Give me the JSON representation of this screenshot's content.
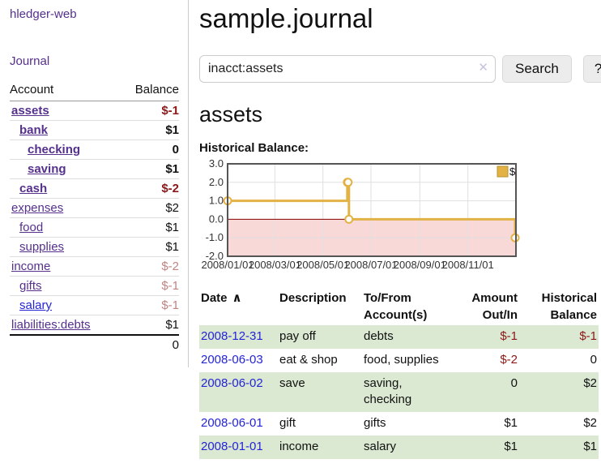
{
  "app": {
    "brand": "hledger-web",
    "nav_journal": "Journal"
  },
  "colors": {
    "link_purple": "#55308d",
    "link_blue": "#2424d6",
    "negative_strong": "#8c1818",
    "negative_soft": "#c08483",
    "row_stripe_green": "#dbe9d3"
  },
  "sidebar": {
    "header": {
      "account": "Account",
      "balance": "Balance"
    },
    "accounts": [
      {
        "name": "assets",
        "indent": 0,
        "bold": true,
        "link_color": "purple",
        "balance": "$-1",
        "balance_style": "neg-strong"
      },
      {
        "name": "bank",
        "indent": 1,
        "bold": true,
        "link_color": "purple",
        "balance": "$1",
        "balance_style": "normal"
      },
      {
        "name": "checking",
        "indent": 2,
        "bold": true,
        "link_color": "purple",
        "balance": "0",
        "balance_style": "normal"
      },
      {
        "name": "saving",
        "indent": 2,
        "bold": true,
        "link_color": "purple",
        "balance": "$1",
        "balance_style": "normal"
      },
      {
        "name": "cash",
        "indent": 1,
        "bold": true,
        "link_color": "purple",
        "balance": "$-2",
        "balance_style": "neg-strong"
      },
      {
        "name": "expenses",
        "indent": 0,
        "bold": false,
        "link_color": "purple",
        "balance": "$2",
        "balance_style": "normal"
      },
      {
        "name": "food",
        "indent": 1,
        "bold": false,
        "link_color": "purple",
        "balance": "$1",
        "balance_style": "normal"
      },
      {
        "name": "supplies",
        "indent": 1,
        "bold": false,
        "link_color": "purple",
        "balance": "$1",
        "balance_style": "normal"
      },
      {
        "name": "income",
        "indent": 0,
        "bold": false,
        "link_color": "purple",
        "balance": "$-2",
        "balance_style": "neg-soft"
      },
      {
        "name": "gifts",
        "indent": 1,
        "bold": false,
        "link_color": "purple",
        "balance": "$-1",
        "balance_style": "neg-soft"
      },
      {
        "name": "salary",
        "indent": 1,
        "bold": false,
        "link_color": "blue",
        "balance": "$-1",
        "balance_style": "neg-soft"
      },
      {
        "name": "liabilities:debts",
        "indent": 0,
        "bold": false,
        "link_color": "purple",
        "balance": "$1",
        "balance_style": "normal"
      }
    ],
    "total": "0"
  },
  "main": {
    "title": "sample.journal",
    "search": {
      "value": "inacct:assets",
      "clear_icon": "✕",
      "button_label": "Search",
      "help_label": "?"
    },
    "account_heading": "assets",
    "chart_label": "Historical Balance:"
  },
  "chart_data": {
    "type": "line",
    "title": "Historical Balance:",
    "step": true,
    "series": [
      {
        "name": "$",
        "points": [
          {
            "x": "2008-01-01",
            "y": 1
          },
          {
            "x": "2008-06-01",
            "y": 2
          },
          {
            "x": "2008-06-02",
            "y": 2
          },
          {
            "x": "2008-06-03",
            "y": 0
          },
          {
            "x": "2008-12-31",
            "y": -1
          }
        ]
      }
    ],
    "ylim": [
      -2,
      3
    ],
    "yticks": [
      3,
      2,
      1,
      0,
      -1,
      -2
    ],
    "ytick_labels": [
      "3.0",
      "2.0",
      "1.0",
      "0.0",
      "-1.0",
      "-2.0"
    ],
    "xlim": [
      "2008-01-01",
      "2009-01-01"
    ],
    "xticks": [
      "2008-01-01",
      "2008-03-01",
      "2008-05-01",
      "2008-07-01",
      "2008-09-01",
      "2008-11-01"
    ],
    "xtick_labels": [
      "2008/01/01",
      "2008/03/01",
      "2008/05/01",
      "2008/07/01",
      "2008/09/01",
      "2008/11/01"
    ],
    "legend": {
      "position": "top-right",
      "entries": [
        "$"
      ]
    },
    "grid": true,
    "negative_region_shaded": true,
    "colors": {
      "line": "#e3b245",
      "marker_fill": "#ffffff",
      "negative_fill": "#f9d8d8",
      "zero_line": "#8b0000",
      "grid": "#e0e0e0",
      "border": "#555555",
      "legend_swatch_border": "#b8922f"
    }
  },
  "register": {
    "columns": [
      "Date",
      "Description",
      "To/From Account(s)",
      "Amount Out/In",
      "Historical Balance"
    ],
    "sort_ascending_icon": "∧",
    "rows": [
      {
        "date": "2008-12-31",
        "description": "pay off",
        "accounts": "debts",
        "amount": "$-1",
        "amount_style": "neg-strong",
        "balance": "$-1",
        "balance_style": "neg-strong",
        "shaded": true
      },
      {
        "date": "2008-06-03",
        "description": "eat & shop",
        "accounts": "food, supplies",
        "amount": "$-2",
        "amount_style": "neg-strong",
        "balance": "0",
        "balance_style": "normal",
        "shaded": false
      },
      {
        "date": "2008-06-02",
        "description": "save",
        "accounts": "saving, checking",
        "amount": "0",
        "amount_style": "normal",
        "balance": "$2",
        "balance_style": "normal",
        "shaded": true
      },
      {
        "date": "2008-06-01",
        "description": "gift",
        "accounts": "gifts",
        "amount": "$1",
        "amount_style": "normal",
        "balance": "$2",
        "balance_style": "normal",
        "shaded": false
      },
      {
        "date": "2008-01-01",
        "description": "income",
        "accounts": "salary",
        "amount": "$1",
        "amount_style": "normal",
        "balance": "$1",
        "balance_style": "normal",
        "shaded": true
      }
    ]
  }
}
